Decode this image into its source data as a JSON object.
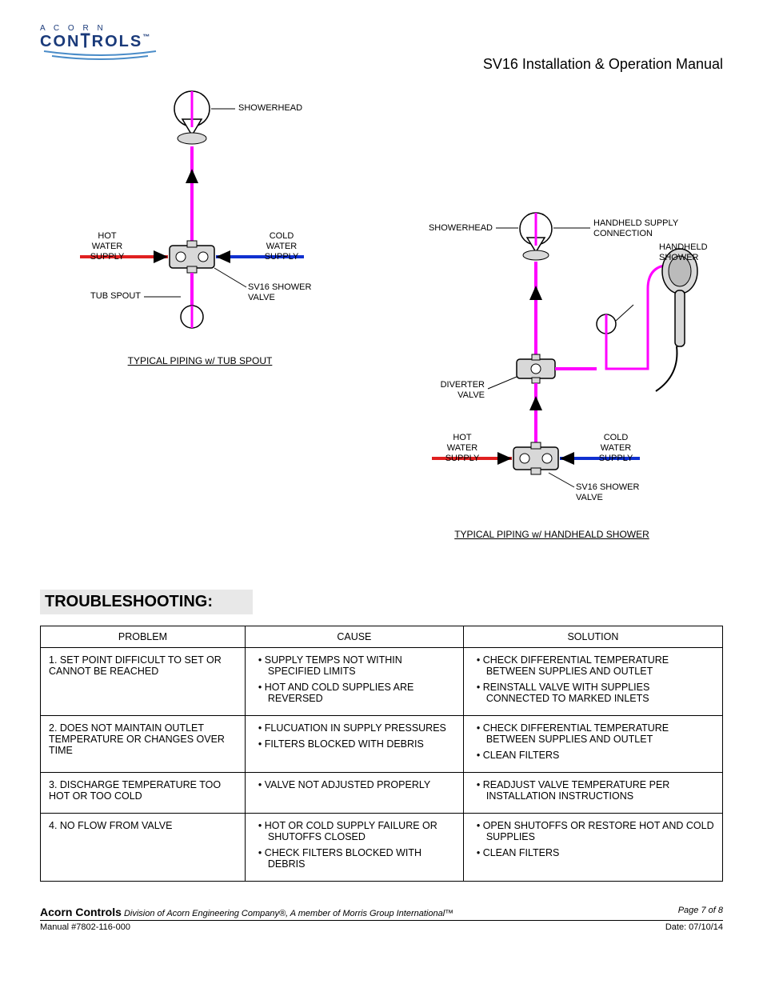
{
  "logo": {
    "brand_top": "A C O R N",
    "brand_bottom": "CONTROLS",
    "tm": "™"
  },
  "doc_title": "SV16 Installation & Operation Manual",
  "colors": {
    "hot": "#e02020",
    "cold": "#1030d0",
    "mix": "#ff00ff",
    "black": "#000000",
    "valve_fill": "#d8d8d8",
    "logo_blue": "#1a3a7a",
    "logo_wave": "#4a8cc8"
  },
  "diagram_left": {
    "caption": "TYPICAL PIPING w/ TUB SPOUT",
    "labels": {
      "showerhead": "SHOWERHEAD",
      "hot": "HOT\nWATER\nSUPPLY",
      "cold": "COLD\nWATER\nSUPPLY",
      "tub_spout": "TUB SPOUT",
      "valve": "SV16 SHOWER\nVALVE"
    }
  },
  "diagram_right": {
    "caption": "TYPICAL PIPING w/ HANDHEALD SHOWER",
    "labels": {
      "showerhead": "SHOWERHEAD",
      "hh_conn": "HANDHELD SUPPLY\nCONNECTION",
      "hh_shower": "HANDHELD\nSHOWER",
      "diverter": "DIVERTER\nVALVE",
      "hot": "HOT\nWATER\nSUPPLY",
      "cold": "COLD\nWATER\nSUPPLY",
      "valve": "SV16 SHOWER\nVALVE"
    }
  },
  "section_title": "TROUBLESHOOTING:",
  "table": {
    "headers": [
      "PROBLEM",
      "CAUSE",
      "SOLUTION"
    ],
    "rows": [
      {
        "problem": "1. SET POINT DIFFICULT TO SET OR CANNOT BE REACHED",
        "cause": [
          "SUPPLY TEMPS NOT WITHIN SPECIFIED LIMITS",
          "HOT AND COLD SUPPLIES ARE REVERSED"
        ],
        "solution": [
          "CHECK DIFFERENTIAL TEMPERATURE BETWEEN SUPPLIES AND OUTLET",
          "REINSTALL VALVE WITH SUPPLIES CONNECTED TO MARKED INLETS"
        ]
      },
      {
        "problem": "2. DOES NOT MAINTAIN OUTLET TEMPERATURE OR CHANGES OVER TIME",
        "cause": [
          "FLUCUATION IN SUPPLY PRESSURES",
          "FILTERS BLOCKED WITH DEBRIS"
        ],
        "solution": [
          "CHECK DIFFERENTIAL TEMPERATURE BETWEEN SUPPLIES AND OUTLET",
          "CLEAN FILTERS"
        ]
      },
      {
        "problem": "3. DISCHARGE TEMPERATURE TOO HOT OR TOO COLD",
        "cause": [
          "VALVE NOT ADJUSTED PROPERLY"
        ],
        "solution": [
          "READJUST VALVE TEMPERATURE PER INSTALLATION INSTRUCTIONS"
        ]
      },
      {
        "problem": "4. NO FLOW FROM VALVE",
        "cause": [
          "HOT OR COLD SUPPLY FAILURE OR SHUTOFFS CLOSED",
          "CHECK FILTERS BLOCKED WITH DEBRIS"
        ],
        "solution": [
          "OPEN SHUTOFFS OR RESTORE HOT AND COLD SUPPLIES",
          "CLEAN FILTERS"
        ]
      }
    ]
  },
  "footer": {
    "company": "Acorn Controls",
    "tagline": " Division of Acorn Engineering Company®, A member of Morris Group International™",
    "page": "Page 7 of 8",
    "manual": "Manual #7802-116-000",
    "date": "Date: 07/10/14"
  }
}
